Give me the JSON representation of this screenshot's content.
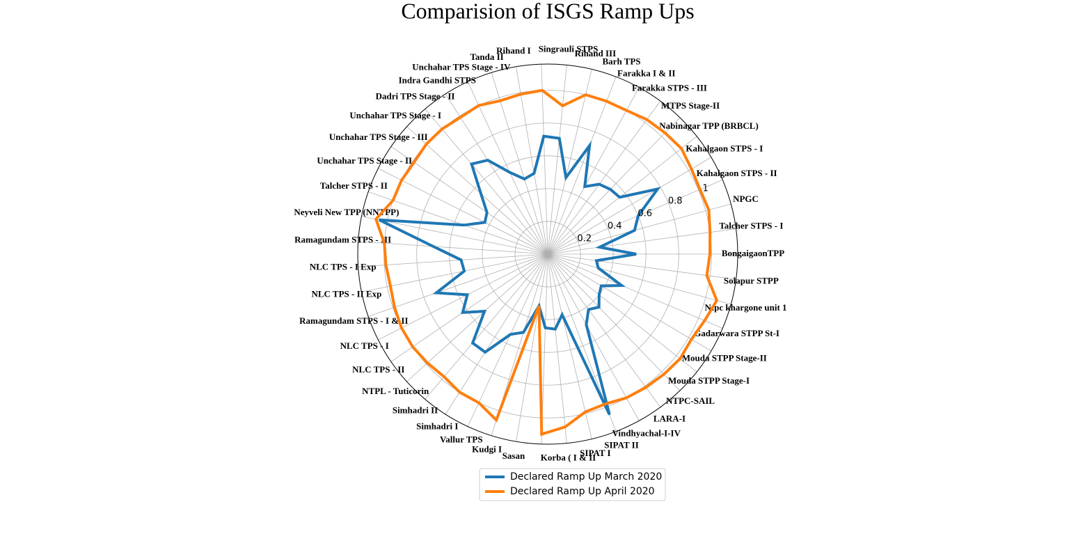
{
  "chart_data": {
    "type": "radar",
    "title": "Comparision of ISGS Ramp Ups",
    "categories": [
      "BongaigaonTPP",
      "Talcher STPS - I",
      "NPGC",
      "Kahalgaon STPS - II",
      "Kahalgaon STPS - I",
      "Nabinagar TPP (BRBCL)",
      "MTPS Stage-II",
      "Farakka STPS - III",
      "Farakka I & II",
      "Barh TPS",
      "Rihand III",
      "Singrauli STPS",
      null,
      "Rihand I",
      "Tanda II",
      "Unchahar TPS Stage - IV",
      "Indra Gandhi STPS",
      "Dadri TPS Stage - II",
      "Unchahar TPS Stage - I",
      "Unchahar TPS Stage - III",
      "Unchahar TPS Stage - II",
      "Talcher STPS - II",
      "Neyveli New TPP (NNTPP)",
      "Ramagundam STPS - III",
      "NLC TPS - I Exp",
      "NLC TPS - II Exp",
      "Ramagundam STPS - I & II",
      "NLC TPS - I",
      "NLC TPS - II",
      "NTPL - Tuticorin",
      "Simhadri  II",
      "Simhadri I",
      "Vallur TPS",
      "Kudgi I",
      "Sasan",
      null,
      "Korba ( I & II",
      "SIPAT I",
      "SIPAT II",
      "Vindhyachal-I-IV",
      "LARA-I",
      "NTPC-SAIL",
      "Mouda STPP Stage-I",
      "Mouda STPP Stage-II",
      "Gadarwara STPP St-I",
      "Ntpc khargone unit 1",
      "Solapur STPP"
    ],
    "series": [
      {
        "name": "Declared Ramp Up March 2020",
        "color": "#1f77b4",
        "values": [
          0.54,
          0.32,
          0.55,
          0.6,
          0.78,
          0.56,
          0.55,
          0.53,
          0.47,
          0.71,
          0.48,
          0.71,
          0.72,
          0.5,
          0.48,
          0.55,
          0.68,
          0.72,
          0.55,
          0.45,
          0.43,
          0.54,
          1.05,
          0.7,
          0.53,
          0.52,
          0.72,
          0.55,
          0.63,
          0.52,
          0.71,
          0.71,
          0.54,
          0.5,
          0.32,
          0.45,
          0.46,
          0.38,
          1.05,
          0.49,
          0.42,
          0.45,
          0.4,
          0.38,
          0.49,
          0.32,
          0.3
        ]
      },
      {
        "name": "Declared Ramp Up April 2020",
        "color": "#ff7f0e",
        "values": [
          0.99,
          1.0,
          1.02,
          1.01,
          1.02,
          1.04,
          1.03,
          1.02,
          1.0,
          1.0,
          1.0,
          0.91,
          1.0,
          0.99,
          0.98,
          1.0,
          0.99,
          1.0,
          1.0,
          0.99,
          1.0,
          1.0,
          1.07,
          1.0,
          0.99,
          0.98,
          0.99,
          1.0,
          1.0,
          0.99,
          0.98,
          1.0,
          1.0,
          1.06,
          0.32,
          1.1,
          1.06,
          0.99,
          0.98,
          1.0,
          1.01,
          1.02,
          1.03,
          1.02,
          1.04,
          1.07,
          0.98
        ]
      }
    ],
    "ylim": [
      0,
      1.16
    ],
    "yticks": [
      0.2,
      0.4,
      0.6,
      0.8,
      1.0
    ],
    "grid": true,
    "legend": "lower center"
  }
}
